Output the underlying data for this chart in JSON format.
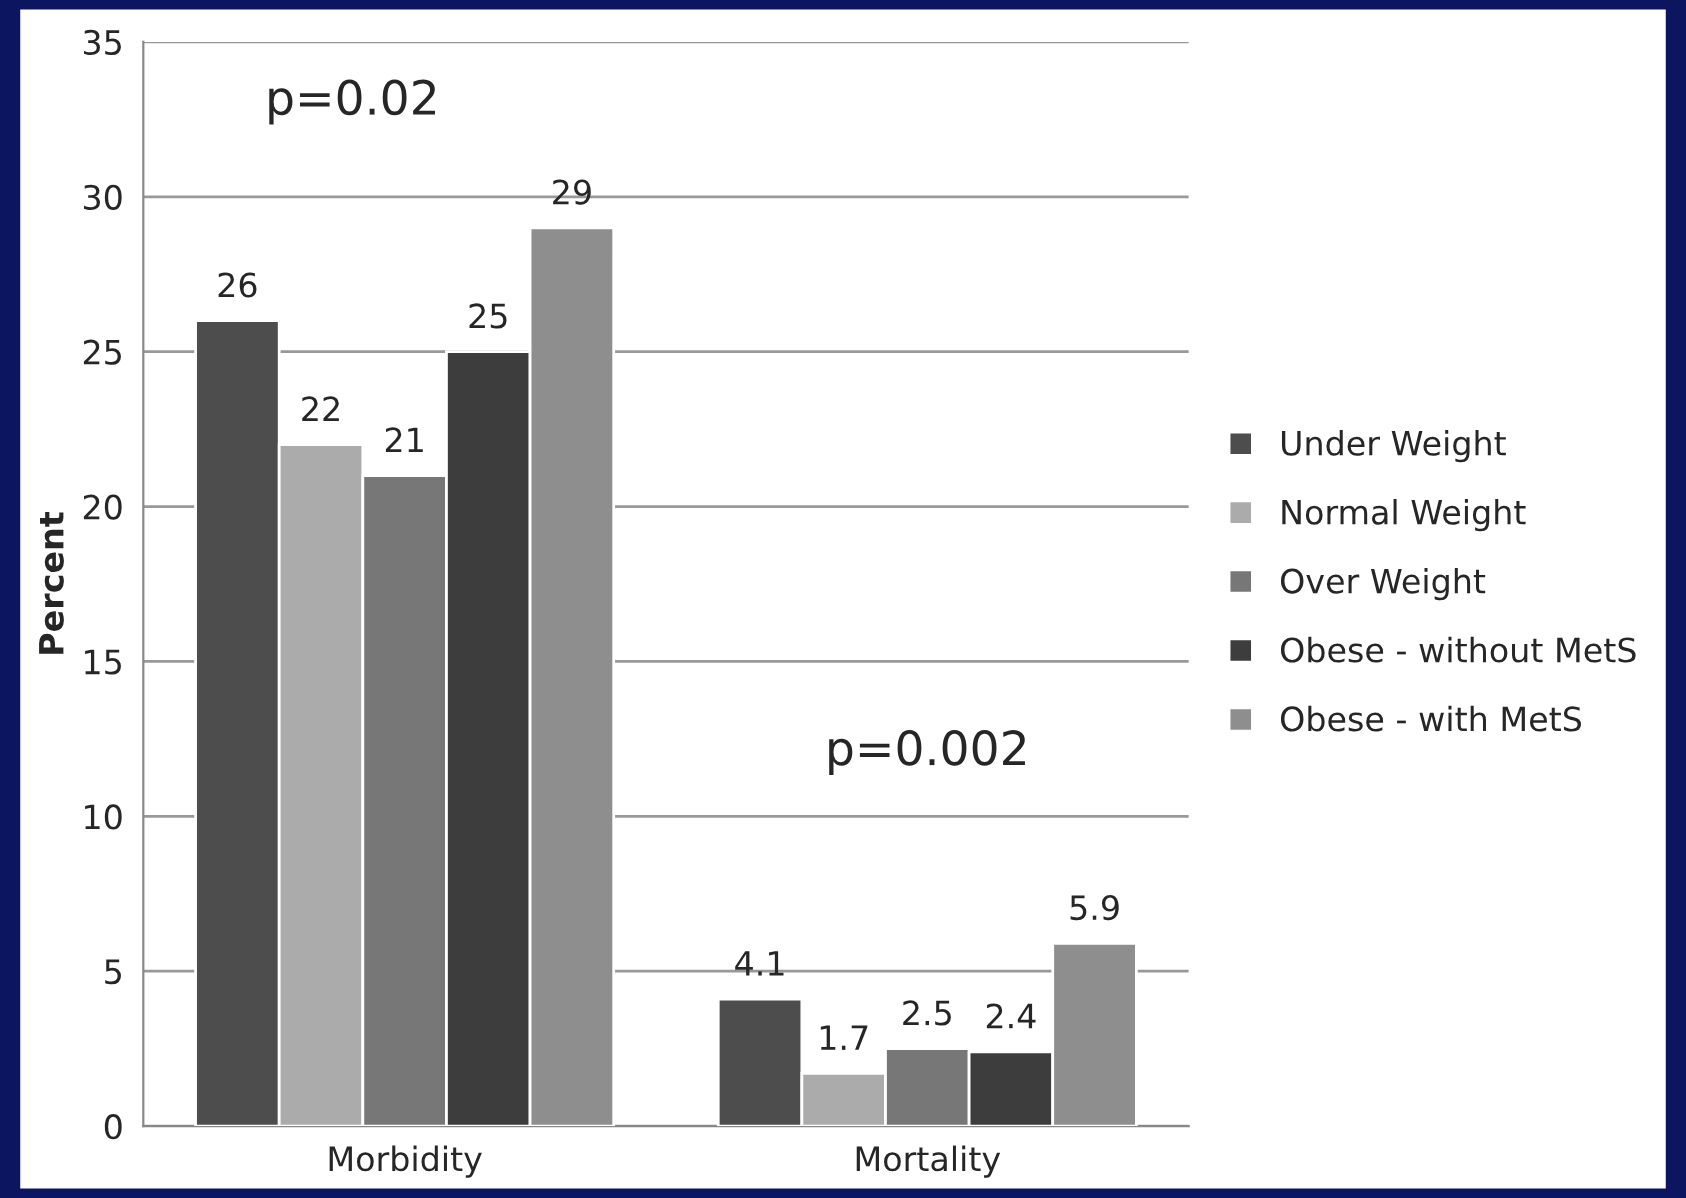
{
  "chart_data": {
    "type": "bar",
    "ylabel": "Percent",
    "categories": [
      "Morbidity",
      "Mortality"
    ],
    "series": [
      {
        "name": "Under Weight",
        "color": "#4d4d4d",
        "values": [
          26,
          4.1
        ]
      },
      {
        "name": "Normal Weight",
        "color": "#ababab",
        "values": [
          22,
          1.7
        ]
      },
      {
        "name": "Over Weight",
        "color": "#777777",
        "values": [
          21,
          2.5
        ]
      },
      {
        "name": "Obese - without MetS",
        "color": "#3d3d3d",
        "values": [
          25,
          2.4
        ]
      },
      {
        "name": "Obese - with MetS",
        "color": "#8e8e8e",
        "values": [
          29,
          5.9
        ]
      }
    ],
    "ylim": [
      0,
      35
    ],
    "yticks": [
      0,
      5,
      10,
      15,
      20,
      25,
      30,
      35
    ],
    "grid": "y",
    "legend": "right",
    "data_labels": true,
    "annotations": [
      "p=0.02",
      "p=0.002"
    ]
  }
}
